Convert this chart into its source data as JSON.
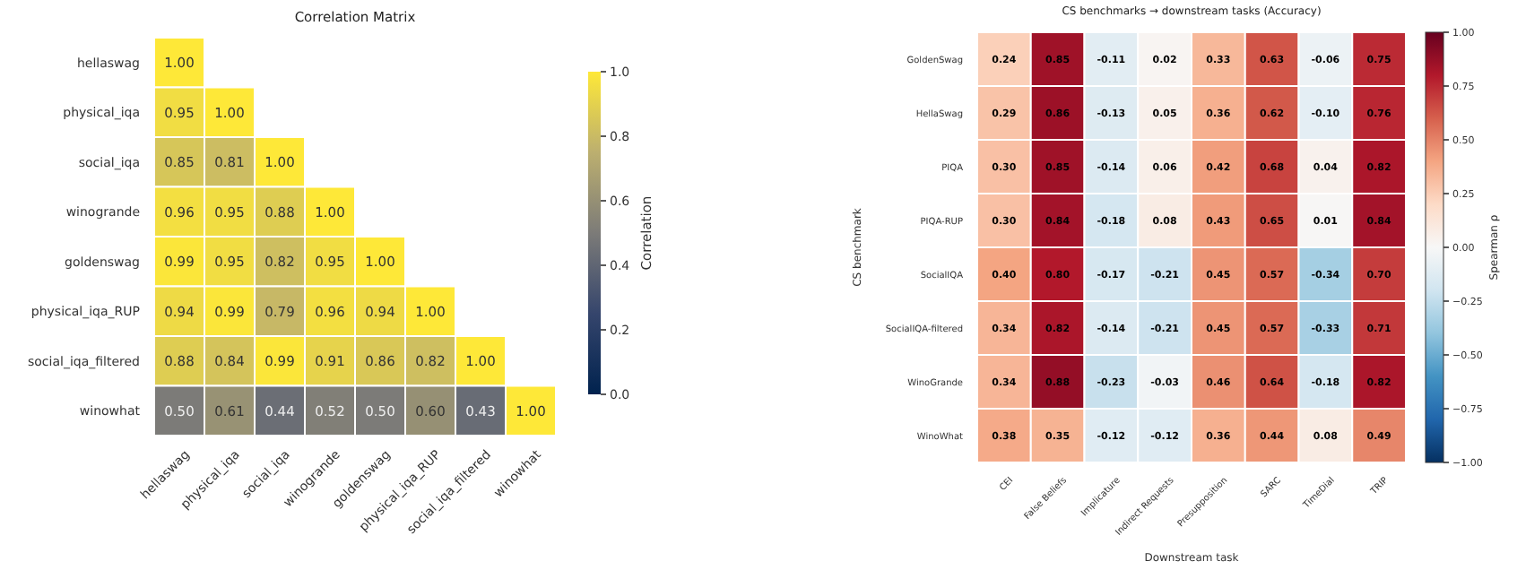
{
  "chart_data": [
    {
      "type": "heatmap",
      "title": "Correlation Matrix",
      "categories": [
        "hellaswag",
        "physical_iqa",
        "social_iqa",
        "winogrande",
        "goldenswag",
        "physical_iqa_RUP",
        "social_iqa_filtered",
        "winowhat"
      ],
      "y_categories": [
        "hellaswag",
        "physical_iqa",
        "social_iqa",
        "winogrande",
        "goldenswag",
        "physical_iqa_RUP",
        "social_iqa_filtered",
        "winowhat"
      ],
      "cells": [
        [
          1.0,
          null,
          null,
          null,
          null,
          null,
          null,
          null
        ],
        [
          0.95,
          1.0,
          null,
          null,
          null,
          null,
          null,
          null
        ],
        [
          0.85,
          0.81,
          1.0,
          null,
          null,
          null,
          null,
          null
        ],
        [
          0.96,
          0.95,
          0.88,
          1.0,
          null,
          null,
          null,
          null
        ],
        [
          0.99,
          0.95,
          0.82,
          0.95,
          1.0,
          null,
          null,
          null
        ],
        [
          0.94,
          0.99,
          0.79,
          0.96,
          0.94,
          1.0,
          null,
          null
        ],
        [
          0.88,
          0.84,
          0.99,
          0.91,
          0.86,
          0.82,
          1.0,
          null
        ],
        [
          0.5,
          0.61,
          0.44,
          0.52,
          0.5,
          0.6,
          0.43,
          1.0
        ]
      ],
      "cell_labels": [
        [
          "1.00",
          null,
          null,
          null,
          null,
          null,
          null,
          null
        ],
        [
          "0.95",
          "1.00",
          null,
          null,
          null,
          null,
          null,
          null
        ],
        [
          "0.85",
          "0.81",
          "1.00",
          null,
          null,
          null,
          null,
          null
        ],
        [
          "0.96",
          "0.95",
          "0.88",
          "1.00",
          null,
          null,
          null,
          null
        ],
        [
          "0.99",
          "0.95",
          "0.82",
          "0.95",
          "1.00",
          null,
          null,
          null
        ],
        [
          "0.94",
          "0.99",
          "0.79",
          "0.96",
          "0.94",
          "1.00",
          null,
          null
        ],
        [
          "0.88",
          "0.84",
          "0.99",
          "0.91",
          "0.86",
          "0.82",
          "1.00",
          null
        ],
        [
          "0.50",
          "0.61",
          "0.44",
          "0.52",
          "0.50",
          "0.60",
          "0.43",
          "1.00"
        ]
      ],
      "clabel": "Correlation",
      "clim": [
        0,
        1
      ],
      "cticks": [
        {
          "value": 0,
          "label": "0.0"
        },
        {
          "value": 0.2,
          "label": "0.2"
        },
        {
          "value": 0.4,
          "label": "0.4"
        },
        {
          "value": 0.6,
          "label": "0.6"
        },
        {
          "value": 0.8,
          "label": "0.8"
        },
        {
          "value": 1,
          "label": "1.0"
        }
      ]
    },
    {
      "type": "heatmap",
      "title": "CS benchmarks → downstream tasks (Accuracy)",
      "xlabel": "Downstream task",
      "ylabel": "CS benchmark",
      "categories": [
        "CEI",
        "False Beliefs",
        "Implicature",
        "Indirect Requests",
        "Presupposition",
        "SARC",
        "TimeDial",
        "TRIP"
      ],
      "y_categories": [
        "GoldenSwag",
        "HellaSwag",
        "PIQA",
        "PIQA-RUP",
        "SocialIQA",
        "SocialIQA-filtered",
        "WinoGrande",
        "WinoWhat"
      ],
      "cells": [
        [
          0.24,
          0.85,
          -0.11,
          0.02,
          0.33,
          0.63,
          -0.06,
          0.75
        ],
        [
          0.29,
          0.86,
          -0.13,
          0.05,
          0.36,
          0.62,
          -0.1,
          0.76
        ],
        [
          0.3,
          0.85,
          -0.14,
          0.06,
          0.42,
          0.68,
          0.04,
          0.82
        ],
        [
          0.3,
          0.84,
          -0.18,
          0.08,
          0.43,
          0.65,
          0.01,
          0.84
        ],
        [
          0.4,
          0.8,
          -0.17,
          -0.21,
          0.45,
          0.57,
          -0.34,
          0.7
        ],
        [
          0.34,
          0.82,
          -0.14,
          -0.21,
          0.45,
          0.57,
          -0.33,
          0.71
        ],
        [
          0.34,
          0.88,
          -0.23,
          -0.03,
          0.46,
          0.64,
          -0.18,
          0.82
        ],
        [
          0.38,
          0.35,
          -0.12,
          -0.12,
          0.36,
          0.44,
          0.08,
          0.49
        ]
      ],
      "cell_labels": [
        [
          "0.24",
          "0.85",
          "-0.11",
          "0.02",
          "0.33",
          "0.63",
          "-0.06",
          "0.75"
        ],
        [
          "0.29",
          "0.86",
          "-0.13",
          "0.05",
          "0.36",
          "0.62",
          "-0.10",
          "0.76"
        ],
        [
          "0.30",
          "0.85",
          "-0.14",
          "0.06",
          "0.42",
          "0.68",
          "0.04",
          "0.82"
        ],
        [
          "0.30",
          "0.84",
          "-0.18",
          "0.08",
          "0.43",
          "0.65",
          "0.01",
          "0.84"
        ],
        [
          "0.40",
          "0.80",
          "-0.17",
          "-0.21",
          "0.45",
          "0.57",
          "-0.34",
          "0.70"
        ],
        [
          "0.34",
          "0.82",
          "-0.14",
          "-0.21",
          "0.45",
          "0.57",
          "-0.33",
          "0.71"
        ],
        [
          "0.34",
          "0.88",
          "-0.23",
          "-0.03",
          "0.46",
          "0.64",
          "-0.18",
          "0.82"
        ],
        [
          "0.38",
          "0.35",
          "-0.12",
          "-0.12",
          "0.36",
          "0.44",
          "0.08",
          "0.49"
        ]
      ],
      "clabel": "Spearman ρ",
      "clim": [
        -1,
        1
      ],
      "cticks": [
        {
          "value": -1,
          "label": "−1.00"
        },
        {
          "value": -0.75,
          "label": "−0.75"
        },
        {
          "value": -0.5,
          "label": "−0.50"
        },
        {
          "value": -0.25,
          "label": "−0.25"
        },
        {
          "value": 0,
          "label": "0.00"
        },
        {
          "value": 0.25,
          "label": "0.25"
        },
        {
          "value": 0.5,
          "label": "0.50"
        },
        {
          "value": 0.75,
          "label": "0.75"
        },
        {
          "value": 1,
          "label": "1.00"
        }
      ]
    }
  ]
}
